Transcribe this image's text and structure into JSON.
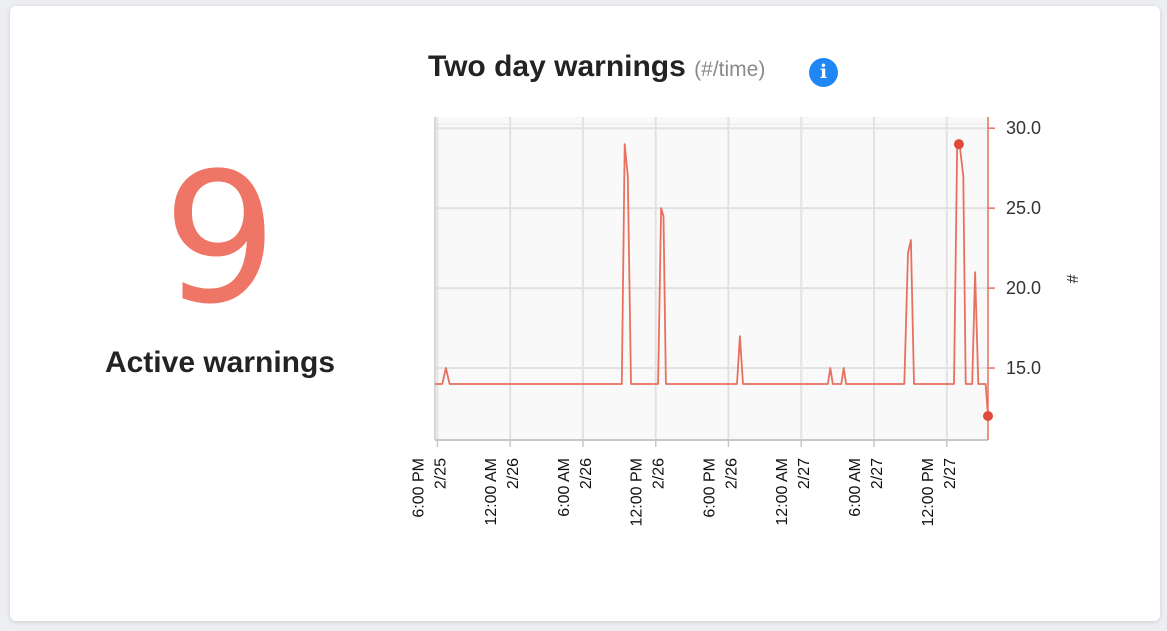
{
  "summary": {
    "count": "9",
    "label": "Active warnings"
  },
  "header": {
    "title": "Two day warnings",
    "subtitle": "(#/time)",
    "info_icon": "info-icon",
    "info_glyph": "i"
  },
  "colors": {
    "accent": "#ef7566",
    "line": "#e8705f",
    "info": "#1f87f5"
  },
  "chart_data": {
    "type": "line",
    "title": "Two day warnings",
    "xlabel": "",
    "ylabel": "#",
    "ylim": [
      10.5,
      30.7
    ],
    "yticks": [
      15.0,
      20.0,
      25.0,
      30.0
    ],
    "ytick_labels": [
      "15.0",
      "20.0",
      "25.0",
      "30.0"
    ],
    "y_axis_side": "right",
    "grid": true,
    "x_range": [
      -0.1,
      22.7
    ],
    "xticks": [
      {
        "x": 0,
        "lines": [
          "2/25",
          "6:00 PM"
        ]
      },
      {
        "x": 3,
        "lines": [
          "2/26",
          "12:00 AM"
        ]
      },
      {
        "x": 6,
        "lines": [
          "2/26",
          "6:00 AM"
        ]
      },
      {
        "x": 9,
        "lines": [
          "2/26",
          "12:00 PM"
        ]
      },
      {
        "x": 12,
        "lines": [
          "2/26",
          "6:00 PM"
        ]
      },
      {
        "x": 15,
        "lines": [
          "2/27",
          "12:00 AM"
        ]
      },
      {
        "x": 18,
        "lines": [
          "2/27",
          "6:00 AM"
        ]
      },
      {
        "x": 21,
        "lines": [
          "2/27",
          "12:00 PM"
        ]
      }
    ],
    "series": [
      {
        "color": "#e8705f",
        "points": [
          [
            -0.1,
            14
          ],
          [
            0.2,
            14
          ],
          [
            0.35,
            15
          ],
          [
            0.5,
            14
          ],
          [
            7.6,
            14
          ],
          [
            7.72,
            29
          ],
          [
            7.85,
            27
          ],
          [
            7.98,
            14
          ],
          [
            9.1,
            14
          ],
          [
            9.22,
            25
          ],
          [
            9.32,
            24.5
          ],
          [
            9.42,
            14
          ],
          [
            12.35,
            14
          ],
          [
            12.47,
            17
          ],
          [
            12.6,
            14
          ],
          [
            16.1,
            14
          ],
          [
            16.2,
            15
          ],
          [
            16.3,
            14
          ],
          [
            16.65,
            14
          ],
          [
            16.75,
            15
          ],
          [
            16.85,
            14
          ],
          [
            19.25,
            14
          ],
          [
            19.4,
            22.2
          ],
          [
            19.52,
            23
          ],
          [
            19.65,
            14
          ],
          [
            21.3,
            14
          ],
          [
            21.43,
            29
          ],
          [
            21.53,
            29
          ],
          [
            21.68,
            27
          ],
          [
            21.78,
            14
          ],
          [
            22.05,
            14
          ],
          [
            22.17,
            21
          ],
          [
            22.3,
            14
          ],
          [
            22.6,
            14
          ],
          [
            22.7,
            12
          ]
        ],
        "markers": [
          [
            21.5,
            29
          ],
          [
            22.7,
            12
          ]
        ]
      }
    ]
  }
}
